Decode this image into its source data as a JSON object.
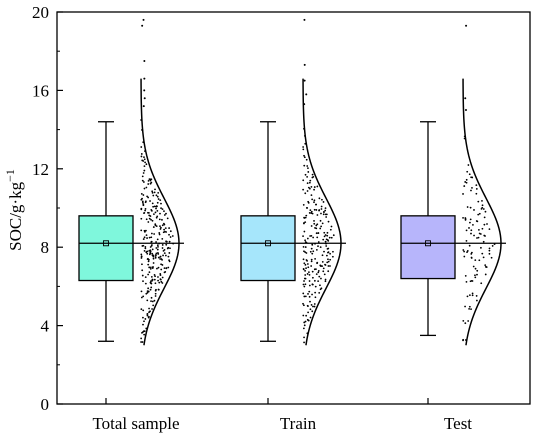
{
  "chart_data": {
    "type": "box-with-jitter-and-density",
    "ylabel": {
      "base": "SOC/g·kg",
      "sup": "−1"
    },
    "ylim": [
      0,
      20
    ],
    "yticks": [
      0,
      4,
      8,
      12,
      16,
      20
    ],
    "categories": [
      "Total sample",
      "Train",
      "Test"
    ],
    "colors": [
      "#7ff7dc",
      "#a6e6fb",
      "#b7b5fb"
    ],
    "boxes": [
      {
        "name": "Total sample",
        "whisker_low": 3.2,
        "q1": 6.3,
        "median": 8.2,
        "mean": 8.2,
        "q3": 9.6,
        "whisker_high": 14.4,
        "outliers": [
          15.2,
          15.6,
          16.0,
          16.6,
          17.5,
          19.3,
          19.6
        ]
      },
      {
        "name": "Train",
        "whisker_low": 3.2,
        "q1": 6.3,
        "median": 8.2,
        "mean": 8.2,
        "q3": 9.6,
        "whisker_high": 14.4,
        "outliers": [
          15.3,
          15.8,
          16.5,
          17.3,
          19.6
        ]
      },
      {
        "name": "Test",
        "whisker_low": 3.5,
        "q1": 6.4,
        "median": 8.2,
        "mean": 8.2,
        "q3": 9.6,
        "whisker_high": 14.4,
        "outliers": [
          15.0,
          15.6,
          19.3
        ]
      }
    ],
    "normal_curve": {
      "mean": 8.2,
      "sd": 2.3,
      "range": [
        3.0,
        16.6
      ]
    },
    "scatter_counts": [
      300,
      240,
      110
    ],
    "grid": false
  }
}
